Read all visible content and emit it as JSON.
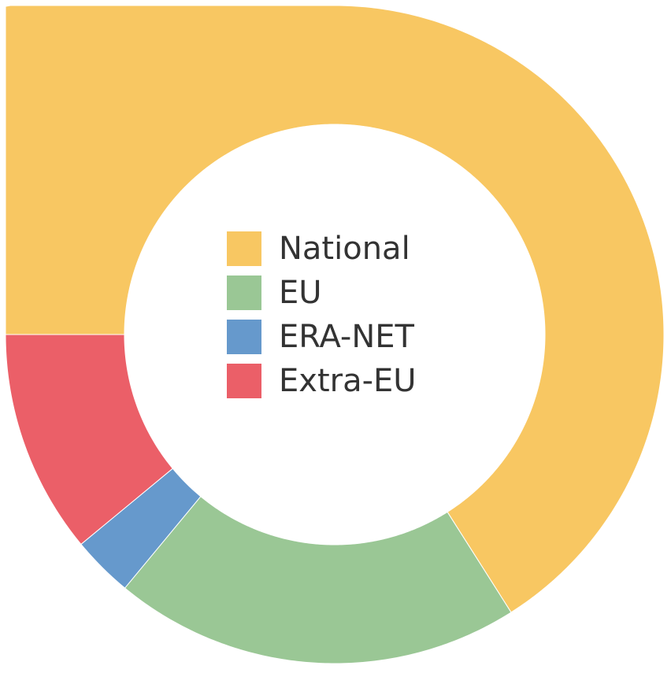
{
  "chart_data": {
    "type": "donut",
    "categories": [
      "National",
      "EU",
      "ERA-NET",
      "Extra-EU"
    ],
    "values": [
      66,
      20,
      3,
      11
    ],
    "colors": [
      "#f8c762",
      "#9ac795",
      "#6699cc",
      "#eb5f68"
    ],
    "legend": "center"
  }
}
